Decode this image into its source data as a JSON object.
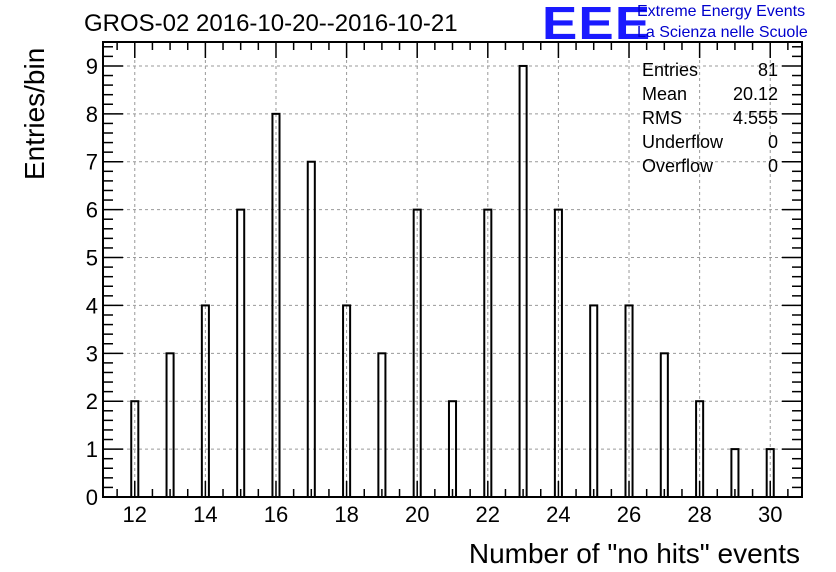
{
  "header": {
    "title": "GROS-02 2016-10-20--2016-10-21",
    "logo_text": "EEE",
    "org_line1": "Extreme Energy Events",
    "org_line2": "La Scienza nelle Scuole"
  },
  "stats": [
    {
      "label": "Entries",
      "value": "81"
    },
    {
      "label": "Mean",
      "value": "20.12"
    },
    {
      "label": "RMS",
      "value": "4.555"
    },
    {
      "label": "Underflow",
      "value": "0"
    },
    {
      "label": "Overflow",
      "value": "0"
    }
  ],
  "colors": {
    "bars": "#000000",
    "grid": "#999999",
    "logo": "#1a1aff",
    "org_text": "#0000cc"
  },
  "chart_data": {
    "type": "bar",
    "title": "GROS-02 2016-10-20--2016-10-21",
    "xlabel": "Number of \"no hits\" events",
    "ylabel": "Entries/bin",
    "xlim": [
      11.1,
      30.9
    ],
    "ylim": [
      0,
      9.5
    ],
    "grid": true,
    "x_ticks": [
      12,
      14,
      16,
      18,
      20,
      22,
      24,
      26,
      28,
      30
    ],
    "y_ticks": [
      0,
      1,
      2,
      3,
      4,
      5,
      6,
      7,
      8,
      9
    ],
    "x": [
      12,
      13,
      14,
      15,
      16,
      17,
      18,
      19,
      20,
      21,
      22,
      23,
      24,
      25,
      26,
      27,
      28,
      29,
      30
    ],
    "values": [
      2,
      3,
      4,
      6,
      8,
      7,
      4,
      3,
      6,
      2,
      6,
      9,
      6,
      4,
      4,
      3,
      2,
      1,
      1
    ]
  }
}
